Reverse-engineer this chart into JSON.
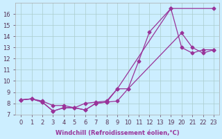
{
  "xlabel": "Windchill (Refroidissement éolien,°C)",
  "background_color": "#cceeff",
  "grid_color": "#aacccc",
  "line_color": "#993399",
  "ylim": [
    7,
    17
  ],
  "yticks": [
    7,
    8,
    9,
    10,
    11,
    12,
    13,
    14,
    15,
    16
  ],
  "tick_labels": [
    "0",
    "1",
    "2",
    "3",
    "4",
    "5",
    "6",
    "7",
    "8",
    "9",
    "10",
    "11",
    "12",
    "13",
    "19",
    "20",
    "21",
    "22",
    "23"
  ],
  "series1_xi": [
    0,
    1,
    2,
    3,
    4,
    5,
    6,
    7,
    8,
    9,
    10,
    11,
    12,
    14,
    18
  ],
  "series1_y": [
    8.3,
    8.4,
    8.1,
    7.3,
    7.6,
    7.6,
    7.4,
    8.0,
    8.1,
    8.2,
    9.3,
    11.8,
    14.4,
    16.5,
    16.5
  ],
  "series2_xi": [
    0,
    1,
    2,
    3,
    4,
    5,
    6,
    7,
    8,
    9,
    14,
    15,
    16,
    17,
    18
  ],
  "series2_y": [
    8.3,
    8.4,
    8.1,
    7.3,
    7.6,
    7.6,
    7.4,
    8.0,
    8.1,
    9.3,
    16.5,
    13.0,
    12.5,
    12.8,
    12.8
  ],
  "series3_xi": [
    0,
    1,
    2,
    3,
    4,
    5,
    6,
    7,
    8,
    9,
    10,
    15,
    16,
    17,
    18
  ],
  "series3_y": [
    8.3,
    8.4,
    8.2,
    7.8,
    7.8,
    7.6,
    8.0,
    8.1,
    8.2,
    9.3,
    9.3,
    14.3,
    13.0,
    12.5,
    12.8
  ],
  "marker_s1_xi": [
    0,
    1,
    2,
    3,
    4,
    5,
    6,
    7,
    8,
    9,
    10,
    11,
    12,
    14,
    18
  ],
  "marker_s1_y": [
    8.3,
    8.4,
    8.1,
    7.3,
    7.6,
    7.6,
    7.4,
    8.0,
    8.1,
    8.2,
    9.3,
    11.8,
    14.4,
    16.5,
    16.5
  ],
  "marker_s2_xi": [
    0,
    1,
    2,
    3,
    4,
    5,
    6,
    7,
    8,
    9,
    14,
    15,
    16,
    17,
    18
  ],
  "marker_s2_y": [
    8.3,
    8.4,
    8.1,
    7.3,
    7.6,
    7.6,
    7.4,
    8.0,
    8.1,
    9.3,
    16.5,
    13.0,
    12.5,
    12.8,
    12.8
  ],
  "marker_s3_xi": [
    0,
    1,
    2,
    3,
    4,
    5,
    6,
    7,
    8,
    9,
    10,
    15,
    16,
    17,
    18
  ],
  "marker_s3_y": [
    8.3,
    8.4,
    8.2,
    7.8,
    7.8,
    7.6,
    8.0,
    8.1,
    8.2,
    9.3,
    9.3,
    14.3,
    13.0,
    12.5,
    12.8
  ]
}
